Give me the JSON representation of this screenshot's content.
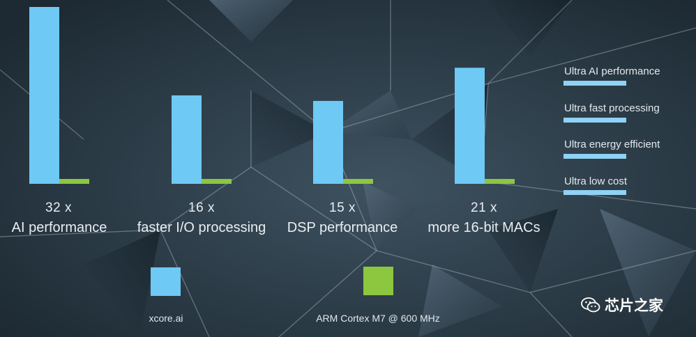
{
  "chart_data": {
    "type": "bar",
    "categories": [
      "AI performance",
      "faster I/O processing",
      "DSP performance",
      "more 16-bit MACs"
    ],
    "multipliers": [
      "32 x",
      "16 x",
      "15 x",
      "21 x"
    ],
    "series": [
      {
        "name": "xcore.ai",
        "values": [
          32,
          16,
          15,
          21
        ],
        "color": "#6ec9f4"
      },
      {
        "name": "ARM Cortex M7 @ 600 MHz",
        "values": [
          1,
          1,
          1,
          1
        ],
        "color": "#8dc63f"
      }
    ],
    "ylim": [
      0,
      32
    ],
    "grid": false,
    "legend_position": "bottom"
  },
  "bullets": [
    "Ultra AI performance",
    "Ultra fast processing",
    "Ultra energy efficient",
    "Ultra low cost"
  ],
  "watermark": {
    "text": "芯片之家",
    "icon": "wechat-icon"
  },
  "colors": {
    "primary_bar": "#6ec9f4",
    "secondary_bar": "#8dc63f",
    "background": "#2b3a45"
  }
}
